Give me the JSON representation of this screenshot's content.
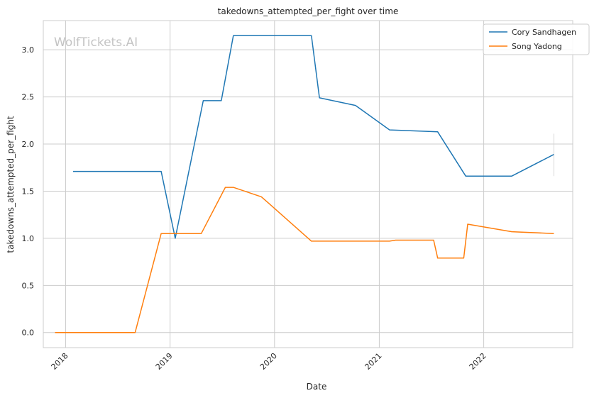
{
  "chart_data": {
    "type": "line",
    "title": "takedowns_attempted_per_fight over time",
    "xlabel": "Date",
    "ylabel": "takedowns_attempted_per_fight",
    "watermark": "WolfTickets.AI",
    "x_ticks": [
      "2018",
      "2019",
      "2020",
      "2021",
      "2022"
    ],
    "y_ticks": [
      "0.0",
      "0.5",
      "1.0",
      "1.5",
      "2.0",
      "2.5",
      "3.0"
    ],
    "xlim": [
      "2017-10-15",
      "2022-11-08"
    ],
    "ylim": [
      -0.16,
      3.31
    ],
    "grid": true,
    "legend_position": "top-right",
    "series": [
      {
        "name": "Cory Sandhagen",
        "color": "#1f77b4",
        "points": [
          [
            "2018-01-27",
            1.71
          ],
          [
            "2018-12-01",
            1.71
          ],
          [
            "2019-01-19",
            1.0
          ],
          [
            "2019-04-27",
            2.46
          ],
          [
            "2019-06-29",
            2.46
          ],
          [
            "2019-08-10",
            3.15
          ],
          [
            "2020-05-09",
            3.15
          ],
          [
            "2020-06-06",
            2.49
          ],
          [
            "2020-10-10",
            2.41
          ],
          [
            "2021-02-06",
            2.15
          ],
          [
            "2021-07-24",
            2.13
          ],
          [
            "2021-10-30",
            1.66
          ],
          [
            "2022-04-09",
            1.66
          ],
          [
            "2022-09-03",
            1.89
          ]
        ],
        "error_bar": {
          "x": "2022-09-03",
          "low": 1.66,
          "high": 2.11
        }
      },
      {
        "name": "Song Yadong",
        "color": "#ff7f0e",
        "points": [
          [
            "2017-11-25",
            0.0
          ],
          [
            "2018-09-01",
            0.0
          ],
          [
            "2018-12-01",
            1.05
          ],
          [
            "2019-04-20",
            1.05
          ],
          [
            "2019-07-13",
            1.54
          ],
          [
            "2019-08-10",
            1.54
          ],
          [
            "2019-11-16",
            1.44
          ],
          [
            "2020-05-09",
            0.97
          ],
          [
            "2021-02-06",
            0.97
          ],
          [
            "2021-02-27",
            0.98
          ],
          [
            "2021-07-10",
            0.98
          ],
          [
            "2021-07-24",
            0.79
          ],
          [
            "2021-10-23",
            0.79
          ],
          [
            "2021-11-06",
            1.15
          ],
          [
            "2022-04-09",
            1.07
          ],
          [
            "2022-09-03",
            1.05
          ]
        ]
      }
    ]
  }
}
